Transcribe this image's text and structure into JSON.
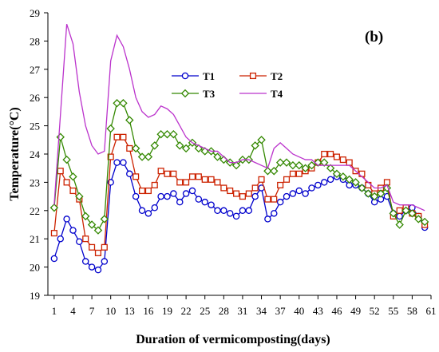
{
  "chart_data": {
    "type": "line",
    "panel_label": "(b)",
    "title": "",
    "xlabel": "Duration of vermicomposting(days)",
    "ylabel": "Temperature(°C)",
    "xlim": [
      0,
      61
    ],
    "ylim": [
      19,
      29
    ],
    "x_ticks": [
      1,
      4,
      7,
      10,
      13,
      16,
      19,
      22,
      25,
      28,
      31,
      34,
      37,
      40,
      43,
      46,
      49,
      52,
      55,
      58,
      61
    ],
    "y_ticks": [
      19,
      20,
      21,
      22,
      23,
      24,
      25,
      26,
      27,
      28,
      29
    ],
    "grid": false,
    "legend_position": "top-center",
    "x": [
      1,
      2,
      3,
      4,
      5,
      6,
      7,
      8,
      9,
      10,
      11,
      12,
      13,
      14,
      15,
      16,
      17,
      18,
      19,
      20,
      21,
      22,
      23,
      24,
      25,
      26,
      27,
      28,
      29,
      30,
      31,
      32,
      33,
      34,
      35,
      36,
      37,
      38,
      39,
      40,
      41,
      42,
      43,
      44,
      45,
      46,
      47,
      48,
      49,
      50,
      51,
      52,
      53,
      54,
      55,
      56,
      57,
      58,
      59,
      60
    ],
    "series": [
      {
        "name": "T1",
        "color": "#0000cc",
        "marker": "circle",
        "values": [
          20.3,
          21.0,
          21.7,
          21.3,
          20.9,
          20.2,
          20.0,
          19.9,
          20.2,
          23.0,
          23.7,
          23.7,
          23.3,
          22.5,
          22.0,
          21.9,
          22.1,
          22.5,
          22.5,
          22.6,
          22.3,
          22.6,
          22.7,
          22.4,
          22.3,
          22.2,
          22.0,
          22.0,
          21.9,
          21.8,
          22.0,
          22.0,
          22.5,
          22.8,
          21.7,
          21.9,
          22.3,
          22.5,
          22.6,
          22.7,
          22.6,
          22.8,
          22.9,
          23.0,
          23.1,
          23.2,
          23.1,
          22.9,
          22.9,
          22.8,
          22.6,
          22.3,
          22.4,
          22.5,
          21.9,
          21.8,
          22.0,
          22.1,
          21.8,
          21.4
        ]
      },
      {
        "name": "T2",
        "color": "#cc2200",
        "marker": "square",
        "values": [
          21.2,
          23.4,
          23.0,
          22.7,
          22.4,
          21.0,
          20.7,
          20.5,
          20.7,
          23.9,
          24.6,
          24.6,
          24.2,
          23.2,
          22.7,
          22.7,
          22.9,
          23.4,
          23.3,
          23.3,
          23.0,
          23.0,
          23.2,
          23.2,
          23.1,
          23.1,
          23.0,
          22.8,
          22.7,
          22.6,
          22.5,
          22.6,
          22.8,
          23.1,
          22.4,
          22.4,
          22.9,
          23.1,
          23.3,
          23.3,
          23.4,
          23.5,
          23.7,
          24.0,
          24.0,
          23.9,
          23.8,
          23.7,
          23.4,
          23.3,
          22.9,
          22.6,
          22.8,
          23.0,
          21.8,
          22.0,
          22.1,
          21.9,
          21.8,
          21.5
        ]
      },
      {
        "name": "T3",
        "color": "#338800",
        "marker": "diamond",
        "values": [
          22.1,
          24.6,
          23.8,
          23.2,
          22.5,
          21.8,
          21.5,
          21.3,
          21.7,
          24.9,
          25.8,
          25.8,
          25.2,
          24.2,
          23.9,
          23.9,
          24.3,
          24.7,
          24.7,
          24.7,
          24.3,
          24.2,
          24.4,
          24.2,
          24.1,
          24.1,
          23.9,
          23.8,
          23.7,
          23.6,
          23.8,
          23.8,
          24.3,
          24.5,
          23.4,
          23.4,
          23.7,
          23.7,
          23.6,
          23.6,
          23.5,
          23.6,
          23.7,
          23.7,
          23.5,
          23.3,
          23.2,
          23.1,
          23.0,
          22.8,
          22.6,
          22.5,
          22.6,
          22.8,
          21.9,
          21.5,
          22.0,
          21.9,
          21.7,
          21.6
        ]
      },
      {
        "name": "T4",
        "color": "#bb33cc",
        "marker": "none",
        "values": [
          22.2,
          25.4,
          28.6,
          27.9,
          26.2,
          25.0,
          24.3,
          24.0,
          24.1,
          27.3,
          28.2,
          27.8,
          27.0,
          26.0,
          25.5,
          25.3,
          25.4,
          25.7,
          25.6,
          25.4,
          25.0,
          24.6,
          24.4,
          24.3,
          24.2,
          24.1,
          24.1,
          23.9,
          23.7,
          23.7,
          23.8,
          23.8,
          23.7,
          23.6,
          23.5,
          24.2,
          24.4,
          24.2,
          24.0,
          23.9,
          23.8,
          23.8,
          23.6,
          23.6,
          23.6,
          23.6,
          23.6,
          23.6,
          23.4,
          23.2,
          23.0,
          22.8,
          22.8,
          22.9,
          22.3,
          22.2,
          22.2,
          22.2,
          22.1,
          22.0
        ]
      }
    ]
  }
}
